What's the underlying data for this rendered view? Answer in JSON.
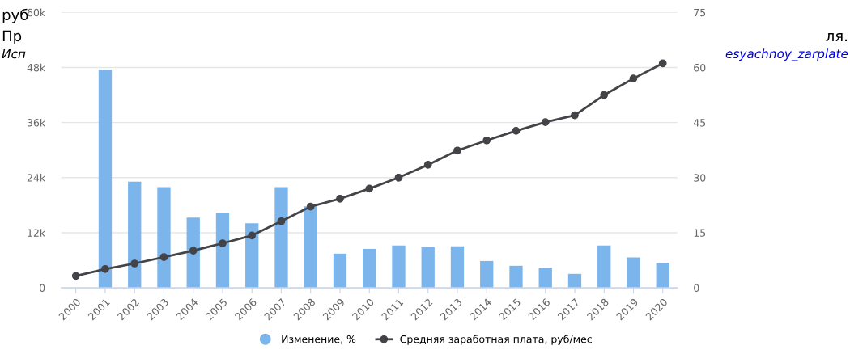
{
  "chart_data": {
    "type": "bar",
    "categories": [
      "2000",
      "2001",
      "2002",
      "2003",
      "2004",
      "2005",
      "2006",
      "2007",
      "2008",
      "2009",
      "2010",
      "2011",
      "2012",
      "2013",
      "2014",
      "2015",
      "2016",
      "2017",
      "2018",
      "2019",
      "2020"
    ],
    "series": [
      {
        "name": "Изменение, %",
        "axis": "y2",
        "color": "#7cb5ec",
        "values": [
          null,
          59.4,
          28.9,
          27.4,
          19.1,
          20.4,
          17.6,
          27.4,
          22.2,
          9.3,
          10.6,
          11.5,
          11.1,
          11.3,
          7.3,
          6.0,
          5.5,
          3.8,
          11.5,
          8.3,
          6.8
        ]
      },
      {
        "name": "Средняя заработная плата, руб/мес",
        "type": "line",
        "color": "#434348",
        "marker": "circle",
        "values": [
          2600,
          4100,
          5300,
          6700,
          8100,
          9700,
          11400,
          14500,
          17700,
          19400,
          21600,
          24000,
          26800,
          29900,
          32100,
          34200,
          36100,
          37600,
          42000,
          45600,
          48900
        ]
      }
    ],
    "ylim": [
      0,
      60000
    ],
    "yticks": [
      0,
      {
        "value": 12000,
        "label": "12k"
      },
      {
        "value": 24000,
        "label": "24k"
      },
      {
        "value": 36000,
        "label": "36k"
      },
      {
        "value": 48000,
        "label": "48k"
      },
      {
        "value": 60000,
        "label": "60k"
      }
    ],
    "y2lim": [
      0,
      75
    ],
    "y2ticks": [
      0,
      15,
      30,
      45,
      60,
      75
    ],
    "grid": "y",
    "legend": "bottom",
    "annotations": [
      "руб",
      "Пр",
      "ля.",
      "Исп",
      "esyachnoy_zarplate"
    ]
  }
}
